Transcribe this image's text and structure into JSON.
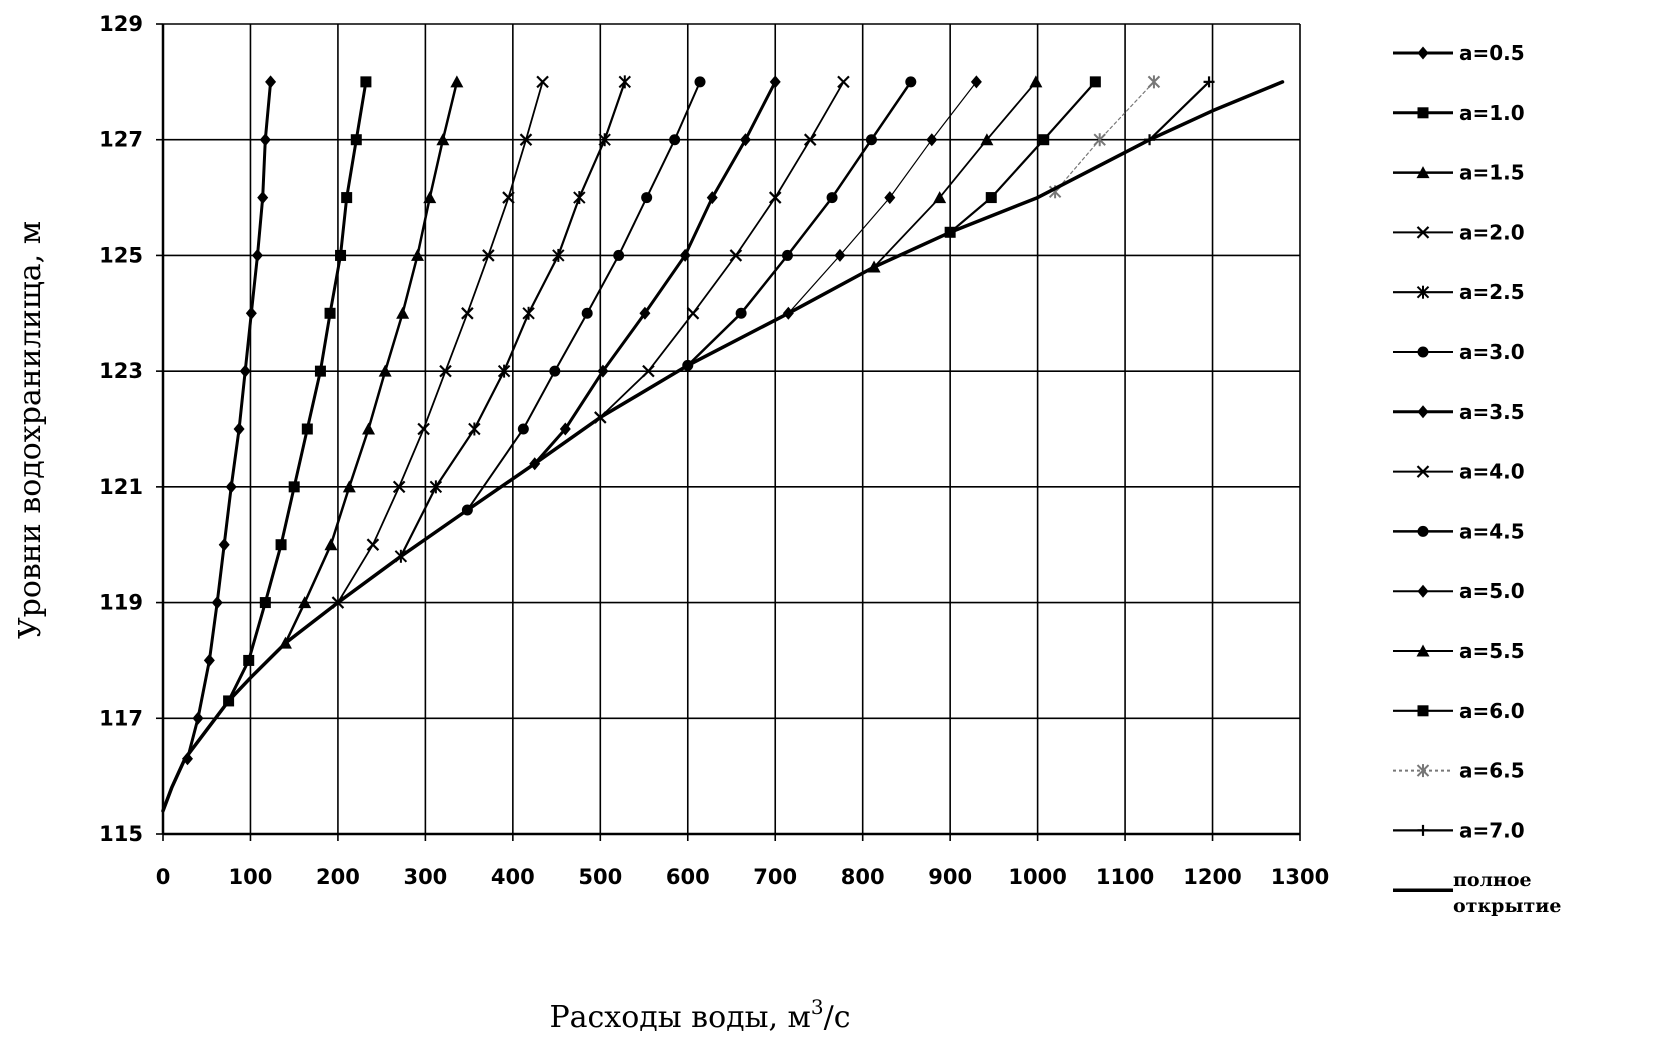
{
  "chart_data": {
    "type": "line",
    "title": "",
    "xlabel_main": "Расходы воды, м",
    "xlabel_sup": "3",
    "xlabel_tail": "/с",
    "ylabel": "Уровни водохранилища, м",
    "xlim": [
      0,
      1300
    ],
    "ylim": [
      115,
      129
    ],
    "x_ticks": [
      "0",
      "100",
      "200",
      "300",
      "400",
      "500",
      "600",
      "700",
      "800",
      "900",
      "1000",
      "1100",
      "1200",
      "1300"
    ],
    "y_ticks": [
      "115",
      "117",
      "119",
      "121",
      "123",
      "125",
      "127",
      "129"
    ],
    "grid": true,
    "legend_position": "right",
    "series": [
      {
        "name": "a=0.5",
        "marker": "diamond",
        "width": 3,
        "dash": "",
        "color": "#000000",
        "points": [
          [
            28,
            116.3
          ],
          [
            40,
            117
          ],
          [
            53,
            118
          ],
          [
            62,
            119
          ],
          [
            70,
            120
          ],
          [
            78,
            121
          ],
          [
            87,
            122
          ],
          [
            94,
            123
          ],
          [
            101,
            124
          ],
          [
            108,
            125
          ],
          [
            114,
            126
          ],
          [
            117,
            127
          ],
          [
            123,
            128
          ]
        ]
      },
      {
        "name": "a=1.0",
        "marker": "square",
        "width": 3,
        "dash": "",
        "color": "#000000",
        "points": [
          [
            75,
            117.3
          ],
          [
            98,
            118
          ],
          [
            117,
            119
          ],
          [
            135,
            120
          ],
          [
            150,
            121
          ],
          [
            165,
            122
          ],
          [
            180,
            123
          ],
          [
            191,
            124
          ],
          [
            203,
            125
          ],
          [
            210,
            126
          ],
          [
            221,
            127
          ],
          [
            232,
            128
          ]
        ]
      },
      {
        "name": "a=1.5",
        "marker": "triangle",
        "width": 2.5,
        "dash": "",
        "color": "#000000",
        "points": [
          [
            140,
            118.3
          ],
          [
            162,
            119
          ],
          [
            192,
            120
          ],
          [
            213,
            121
          ],
          [
            235,
            122
          ],
          [
            254,
            123
          ],
          [
            274,
            124
          ],
          [
            291,
            125
          ],
          [
            305,
            126
          ],
          [
            320,
            127
          ],
          [
            336,
            128
          ]
        ]
      },
      {
        "name": "a=2.0",
        "marker": "x",
        "width": 1.8,
        "dash": "",
        "color": "#000000",
        "points": [
          [
            200,
            119
          ],
          [
            240,
            120
          ],
          [
            270,
            121
          ],
          [
            298,
            122
          ],
          [
            323,
            123
          ],
          [
            348,
            124
          ],
          [
            372,
            125
          ],
          [
            395,
            126
          ],
          [
            415,
            127
          ],
          [
            434,
            128
          ]
        ]
      },
      {
        "name": "a=2.5",
        "marker": "star",
        "width": 2.2,
        "dash": "",
        "color": "#000000",
        "points": [
          [
            272,
            119.8
          ],
          [
            312,
            121
          ],
          [
            356,
            122
          ],
          [
            390,
            123
          ],
          [
            418,
            124
          ],
          [
            452,
            125
          ],
          [
            476,
            126
          ],
          [
            505,
            127
          ],
          [
            528,
            128
          ]
        ]
      },
      {
        "name": "a=3.0",
        "marker": "circle",
        "width": 2,
        "dash": "",
        "color": "#000000",
        "points": [
          [
            348,
            120.6
          ],
          [
            412,
            122
          ],
          [
            448,
            123
          ],
          [
            485,
            124
          ],
          [
            521,
            125
          ],
          [
            553,
            126
          ],
          [
            585,
            127
          ],
          [
            614,
            128
          ]
        ]
      },
      {
        "name": "a=3.5",
        "marker": "diamond",
        "width": 3,
        "dash": "",
        "color": "#000000",
        "points": [
          [
            425,
            121.4
          ],
          [
            460,
            122
          ],
          [
            503,
            123
          ],
          [
            551,
            124
          ],
          [
            597,
            125
          ],
          [
            628,
            126
          ],
          [
            666,
            127
          ],
          [
            700,
            128
          ]
        ]
      },
      {
        "name": "a=4.0",
        "marker": "x",
        "width": 1.8,
        "dash": "",
        "color": "#000000",
        "points": [
          [
            500,
            122.2
          ],
          [
            555,
            123
          ],
          [
            606,
            124
          ],
          [
            655,
            125
          ],
          [
            700,
            126
          ],
          [
            740,
            127
          ],
          [
            778,
            128
          ]
        ]
      },
      {
        "name": "a=4.5",
        "marker": "circle",
        "width": 2.5,
        "dash": "",
        "color": "#000000",
        "points": [
          [
            600,
            123.1
          ],
          [
            661,
            124
          ],
          [
            714,
            125
          ],
          [
            765,
            126
          ],
          [
            810,
            127
          ],
          [
            855,
            128
          ]
        ]
      },
      {
        "name": "a=5.0",
        "marker": "diamond",
        "width": 1.2,
        "dash": "",
        "color": "#000000",
        "points": [
          [
            715,
            124
          ],
          [
            774,
            125
          ],
          [
            831,
            126
          ],
          [
            879,
            127
          ],
          [
            930,
            128
          ]
        ]
      },
      {
        "name": "a=5.5",
        "marker": "triangle",
        "width": 1.8,
        "dash": "",
        "color": "#000000",
        "points": [
          [
            813,
            124.8
          ],
          [
            888,
            126
          ],
          [
            942,
            127
          ],
          [
            998,
            128
          ]
        ]
      },
      {
        "name": "a=6.0",
        "marker": "square",
        "width": 2.2,
        "dash": "",
        "color": "#000000",
        "points": [
          [
            900,
            125.4
          ],
          [
            947,
            126
          ],
          [
            1007,
            127
          ],
          [
            1066,
            128
          ]
        ]
      },
      {
        "name": "a=6.5",
        "marker": "star",
        "width": 1.2,
        "dash": "3,3",
        "color": "#777777",
        "points": [
          [
            1020,
            126.1
          ],
          [
            1071,
            127
          ],
          [
            1133,
            128
          ]
        ]
      },
      {
        "name": "a=7.0",
        "marker": "plus",
        "width": 2.2,
        "dash": "",
        "color": "#000000",
        "points": [
          [
            1128,
            127
          ],
          [
            1196,
            128
          ]
        ]
      },
      {
        "name_line1": "полное",
        "name_line2": "открытие",
        "marker": "none",
        "width": 3.5,
        "dash": "",
        "color": "#000000",
        "points": [
          [
            0,
            115.4
          ],
          [
            10,
            115.8
          ],
          [
            25,
            116.3
          ],
          [
            50,
            116.8
          ],
          [
            75,
            117.3
          ],
          [
            100,
            117.7
          ],
          [
            140,
            118.3
          ],
          [
            200,
            119
          ],
          [
            272,
            119.8
          ],
          [
            348,
            120.6
          ],
          [
            425,
            121.4
          ],
          [
            500,
            122.2
          ],
          [
            600,
            123.1
          ],
          [
            715,
            124
          ],
          [
            813,
            124.8
          ],
          [
            900,
            125.4
          ],
          [
            1000,
            126
          ],
          [
            1128,
            127
          ],
          [
            1200,
            127.5
          ],
          [
            1280,
            128
          ]
        ]
      }
    ]
  }
}
